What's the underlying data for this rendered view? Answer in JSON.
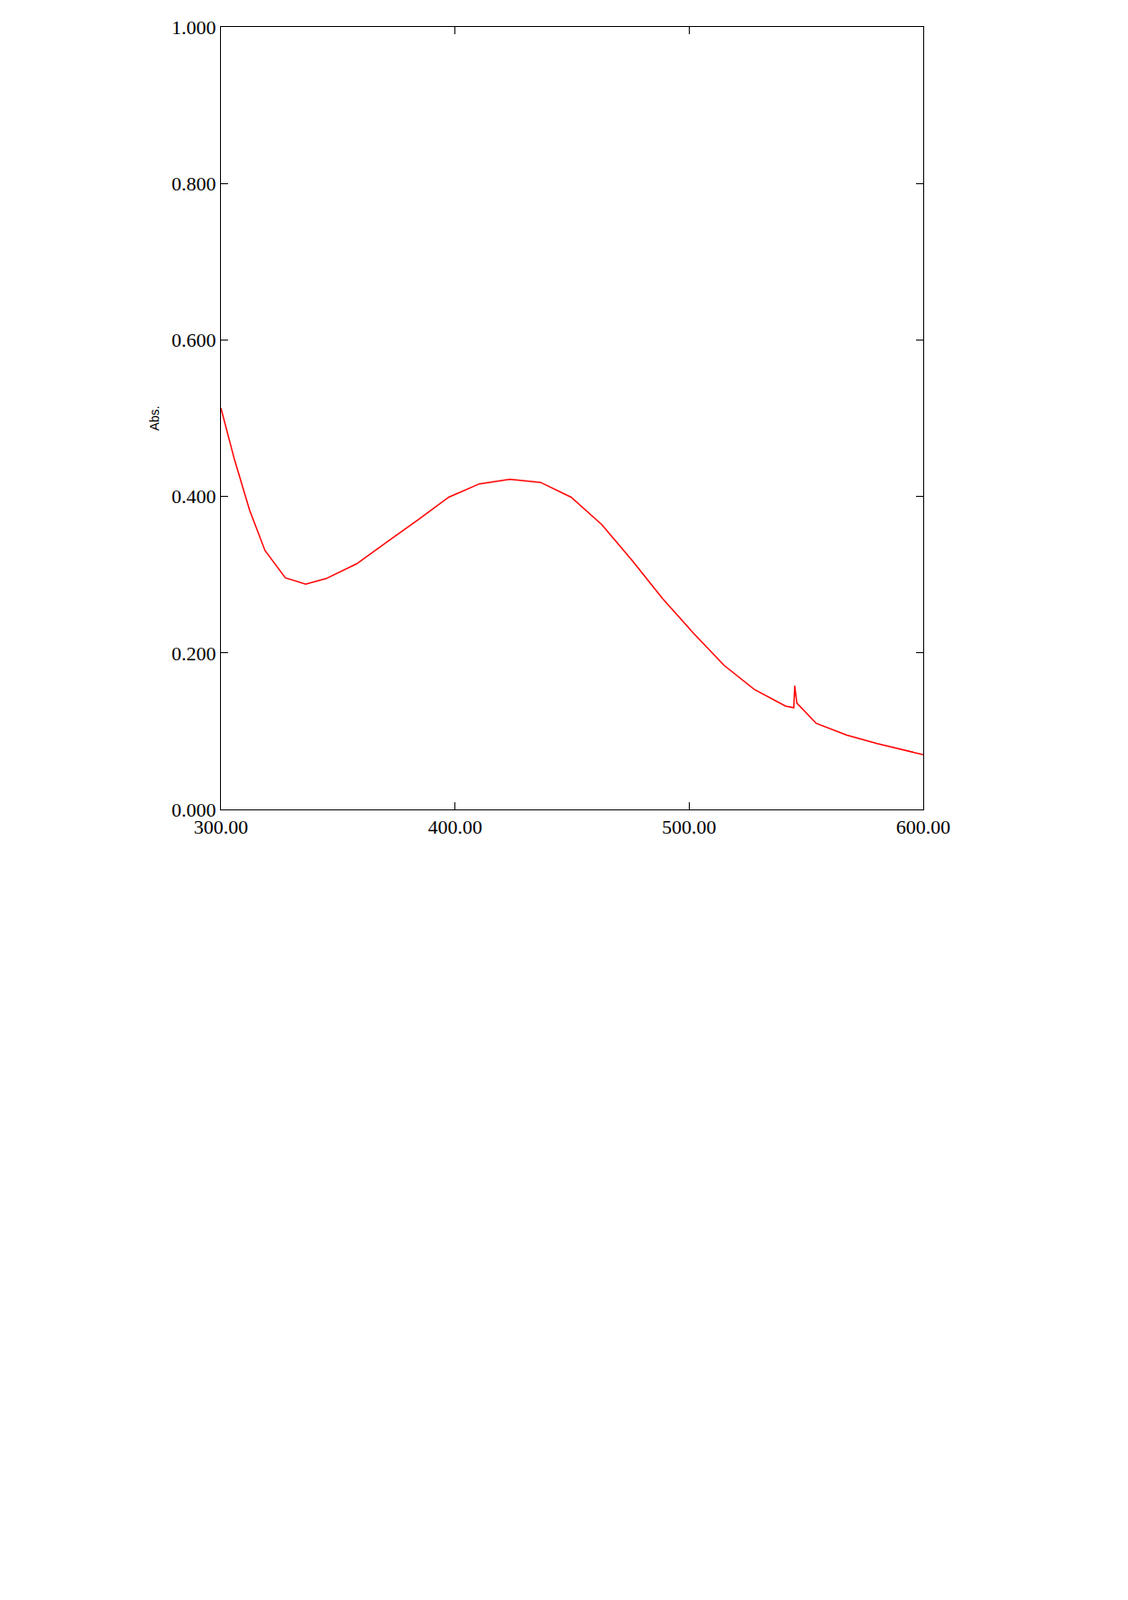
{
  "chart_data": {
    "type": "line",
    "y_label": "Abs.",
    "x": [
      300.0,
      305.7,
      312.2,
      318.8,
      327.5,
      336.2,
      344.9,
      358.0,
      371.0,
      384.2,
      397.3,
      410.3,
      423.4,
      436.5,
      449.6,
      462.7,
      475.7,
      488.8,
      501.9,
      515.0,
      528.0,
      541.2,
      544.7,
      545.1,
      546.0,
      554.3,
      567.3,
      580.4,
      600.0
    ],
    "series": [
      {
        "color": "#ff0000",
        "values": [
          0.513,
          0.448,
          0.383,
          0.331,
          0.296,
          0.288,
          0.295,
          0.314,
          0.342,
          0.37,
          0.399,
          0.416,
          0.422,
          0.418,
          0.399,
          0.364,
          0.318,
          0.269,
          0.225,
          0.184,
          0.153,
          0.132,
          0.13,
          0.158,
          0.136,
          0.11,
          0.095,
          0.084,
          0.07
        ]
      }
    ],
    "xlim": [
      300,
      600
    ],
    "xticks": [
      {
        "value": 300,
        "label": "300.00"
      },
      {
        "value": 400,
        "label": "400.00"
      },
      {
        "value": 500,
        "label": "500.00"
      },
      {
        "value": 600,
        "label": "600.00"
      }
    ],
    "ylim": [
      0,
      1
    ],
    "yticks": [
      {
        "value": 0,
        "label": "0.000"
      },
      {
        "value": 0.2,
        "label": "0.200"
      },
      {
        "value": 0.4,
        "label": "0.400"
      },
      {
        "value": 0.6,
        "label": "0.600"
      },
      {
        "value": 0.8,
        "label": "0.800"
      },
      {
        "value": 1,
        "label": "1.000"
      }
    ],
    "grid": false
  }
}
